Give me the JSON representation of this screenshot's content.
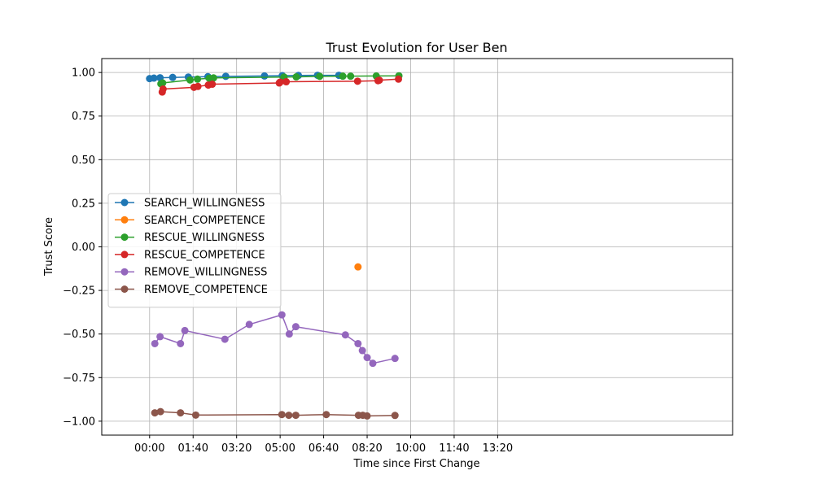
{
  "chart_data": {
    "type": "line",
    "title": "Trust Evolution for User Ben",
    "xlabel": "Time since First Change",
    "ylabel": "Trust Score",
    "xlim": [
      -110,
      1340
    ],
    "ylim": [
      -1.08,
      1.08
    ],
    "x_ticks": [
      {
        "value": 0,
        "label": "00:00"
      },
      {
        "value": 100,
        "label": "01:40"
      },
      {
        "value": 200,
        "label": "03:20"
      },
      {
        "value": 300,
        "label": "05:00"
      },
      {
        "value": 400,
        "label": "06:40"
      },
      {
        "value": 500,
        "label": "08:20"
      },
      {
        "value": 600,
        "label": "10:00"
      },
      {
        "value": 700,
        "label": "11:40"
      },
      {
        "value": 800,
        "label": "13:20"
      }
    ],
    "y_ticks": [
      {
        "value": 1.0,
        "label": "1.00"
      },
      {
        "value": 0.75,
        "label": "0.75"
      },
      {
        "value": 0.5,
        "label": "0.50"
      },
      {
        "value": 0.25,
        "label": "0.25"
      },
      {
        "value": 0.0,
        "label": "0.00"
      },
      {
        "value": -0.25,
        "label": "−0.25"
      },
      {
        "value": -0.5,
        "label": "−0.50"
      },
      {
        "value": -0.75,
        "label": "−0.75"
      },
      {
        "value": -1.0,
        "label": "−1.00"
      }
    ],
    "grid": true,
    "legend_position": "center-left",
    "series": [
      {
        "name": "SEARCH_WILLINGNESS",
        "color": "#1f77b4",
        "points": [
          [
            0,
            0.965
          ],
          [
            10,
            0.968
          ],
          [
            24,
            0.97
          ],
          [
            53,
            0.972
          ],
          [
            89,
            0.974
          ],
          [
            134,
            0.976
          ],
          [
            175,
            0.978
          ],
          [
            264,
            0.98
          ],
          [
            305,
            0.982
          ],
          [
            342,
            0.983
          ],
          [
            386,
            0.984
          ],
          [
            435,
            0.984
          ]
        ]
      },
      {
        "name": "SEARCH_COMPETENCE",
        "color": "#ff7f0e",
        "points": [
          [
            479,
            -0.115
          ]
        ]
      },
      {
        "name": "RESCUE_WILLINGNESS",
        "color": "#2ca02c",
        "points": [
          [
            26,
            0.935
          ],
          [
            30,
            0.94
          ],
          [
            93,
            0.957
          ],
          [
            110,
            0.962
          ],
          [
            137,
            0.967
          ],
          [
            147,
            0.969
          ],
          [
            309,
            0.974
          ],
          [
            337,
            0.975
          ],
          [
            391,
            0.978
          ],
          [
            444,
            0.979
          ],
          [
            462,
            0.979
          ],
          [
            521,
            0.98
          ],
          [
            573,
            0.981
          ]
        ]
      },
      {
        "name": "RESCUE_COMPETENCE",
        "color": "#d62728",
        "points": [
          [
            29,
            0.888
          ],
          [
            31,
            0.905
          ],
          [
            102,
            0.915
          ],
          [
            111,
            0.92
          ],
          [
            135,
            0.928
          ],
          [
            144,
            0.933
          ],
          [
            298,
            0.94
          ],
          [
            300,
            0.945
          ],
          [
            314,
            0.947
          ],
          [
            478,
            0.95
          ],
          [
            525,
            0.953
          ],
          [
            528,
            0.956
          ],
          [
            572,
            0.962
          ]
        ]
      },
      {
        "name": "REMOVE_WILLINGNESS",
        "color": "#9467bd",
        "points": [
          [
            12,
            -0.555
          ],
          [
            24,
            -0.515
          ],
          [
            71,
            -0.555
          ],
          [
            81,
            -0.48
          ],
          [
            173,
            -0.53
          ],
          [
            229,
            -0.445
          ],
          [
            304,
            -0.39
          ],
          [
            321,
            -0.5
          ],
          [
            336,
            -0.458
          ],
          [
            450,
            -0.505
          ],
          [
            479,
            -0.555
          ],
          [
            489,
            -0.595
          ],
          [
            500,
            -0.635
          ],
          [
            513,
            -0.668
          ],
          [
            564,
            -0.64
          ]
        ]
      },
      {
        "name": "REMOVE_COMPETENCE",
        "color": "#8c564b",
        "points": [
          [
            12,
            -0.952
          ],
          [
            25,
            -0.945
          ],
          [
            71,
            -0.952
          ],
          [
            106,
            -0.965
          ],
          [
            304,
            -0.962
          ],
          [
            320,
            -0.966
          ],
          [
            336,
            -0.966
          ],
          [
            406,
            -0.962
          ],
          [
            480,
            -0.966
          ],
          [
            490,
            -0.966
          ],
          [
            500,
            -0.97
          ],
          [
            564,
            -0.967
          ]
        ]
      }
    ]
  }
}
